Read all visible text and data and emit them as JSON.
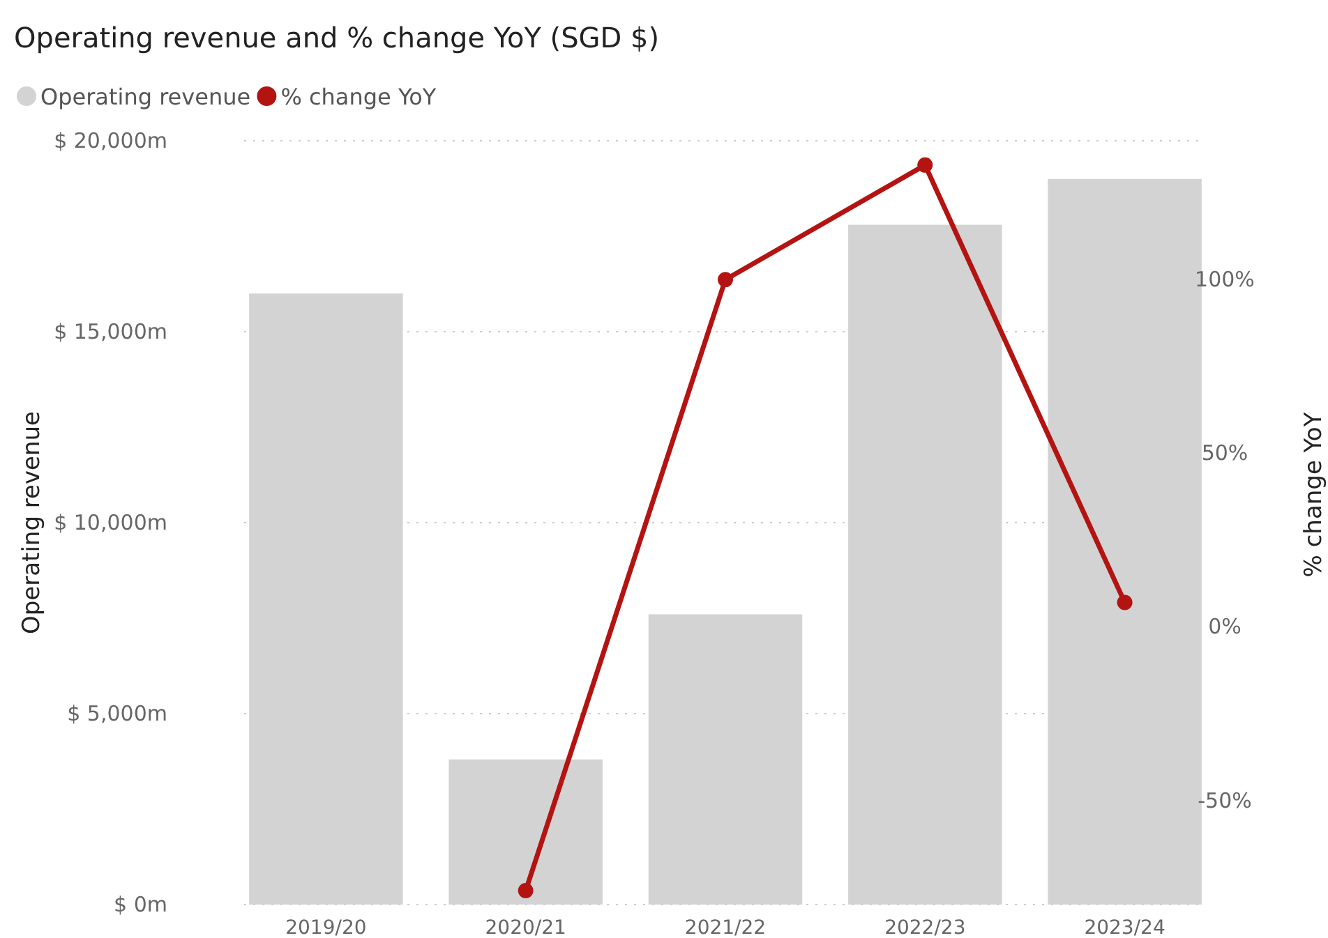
{
  "chart_data": {
    "type": "bar",
    "title": "Operating revenue and % change YoY (SGD $)",
    "categories": [
      "2019/20",
      "2020/21",
      "2021/22",
      "2022/23",
      "2023/24"
    ],
    "series": [
      {
        "name": "Operating revenue",
        "color": "#d3d3d3",
        "values": [
          16000,
          3800,
          7600,
          17800,
          19000
        ]
      },
      {
        "name": "% change YoY",
        "type": "line",
        "axis": "y2",
        "color": "#b31412",
        "marker": "circle",
        "values": [
          null,
          -76,
          100,
          133,
          7
        ]
      }
    ],
    "ylabel": "Operating revenue",
    "y2label": "% change YoY",
    "ylim": [
      0,
      20000
    ],
    "yticks": [
      {
        "value": 0,
        "label": "$ 0m"
      },
      {
        "value": 5000,
        "label": "$ 5,000m"
      },
      {
        "value": 10000,
        "label": "$ 10,000m"
      },
      {
        "value": 15000,
        "label": "$ 15,000m"
      },
      {
        "value": 20000,
        "label": "$ 20,000m"
      }
    ],
    "y2lim": [
      -80,
      140
    ],
    "y2ticks": [
      {
        "value": -50,
        "label": "-50%"
      },
      {
        "value": 0,
        "label": "0%"
      },
      {
        "value": 50,
        "label": "50%"
      },
      {
        "value": 100,
        "label": "100%"
      }
    ],
    "grid": "y",
    "legend": "top left"
  }
}
